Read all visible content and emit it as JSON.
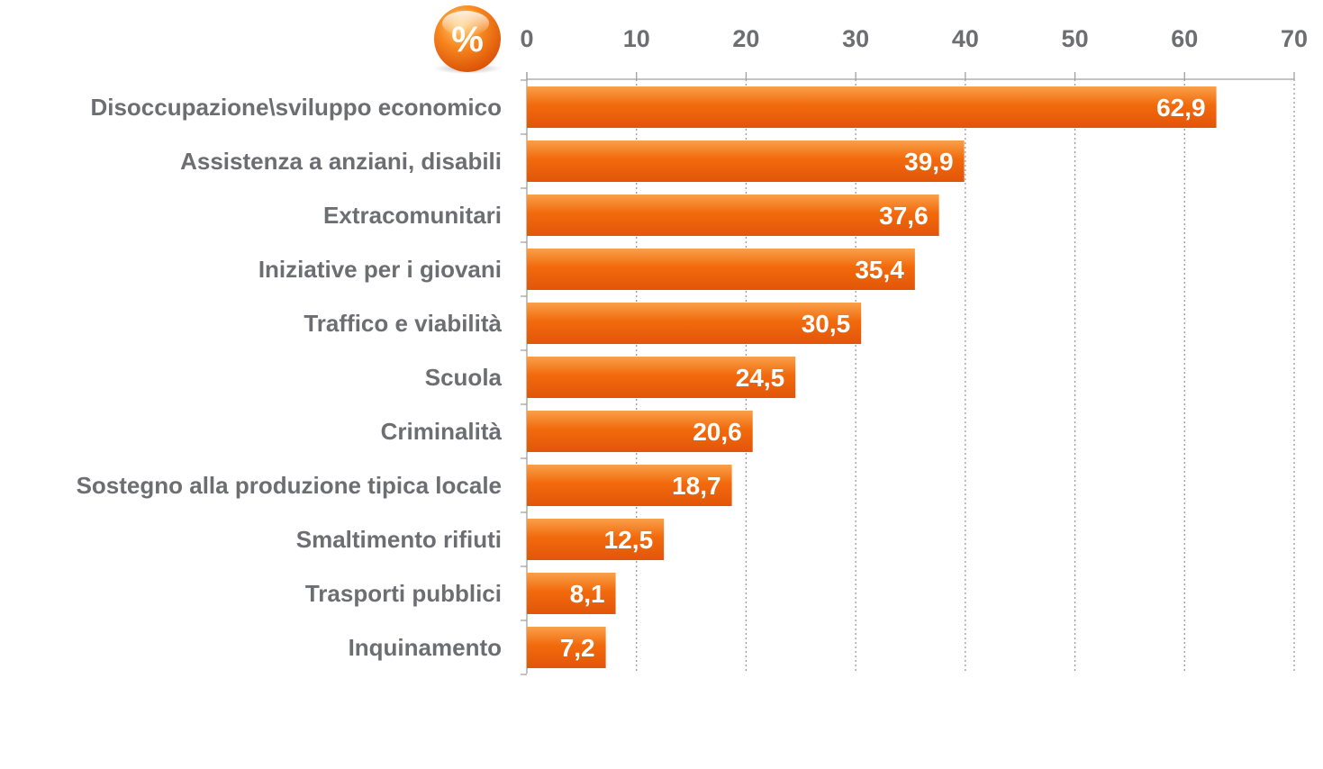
{
  "badge": {
    "symbol": "%",
    "icon": "percent-icon",
    "color": "#f26a0c"
  },
  "colors": {
    "bar": "#f26a0c",
    "bar_light": "#f9a049",
    "bar_dark": "#e2550a",
    "axis_text": "#6d6e71",
    "grid": "#9a9a9a"
  },
  "chart_data": {
    "type": "bar",
    "orientation": "horizontal",
    "categories": [
      "Disoccupazione\\sviluppo economico",
      "Assistenza a anziani, disabili",
      "Extracomunitari",
      "Iniziative per i giovani",
      "Traffico e viabilità",
      "Scuola",
      "Criminalità",
      "Sostegno alla produzione tipica locale",
      "Smaltimento rifiuti",
      "Trasporti pubblici",
      "Inquinamento"
    ],
    "values": [
      62.9,
      39.9,
      37.6,
      35.4,
      30.5,
      24.5,
      20.6,
      18.7,
      12.5,
      8.1,
      7.2
    ],
    "value_labels": [
      "62,9",
      "39,9",
      "37,6",
      "35,4",
      "30,5",
      "24,5",
      "20,6",
      "18,7",
      "12,5",
      "8,1",
      "7,2"
    ],
    "xlim": [
      0,
      70
    ],
    "xticks": [
      0,
      10,
      20,
      30,
      40,
      50,
      60,
      70
    ],
    "x_axis_position": "top",
    "grid": true,
    "legend": "none",
    "title": "",
    "xlabel": "",
    "ylabel": ""
  }
}
